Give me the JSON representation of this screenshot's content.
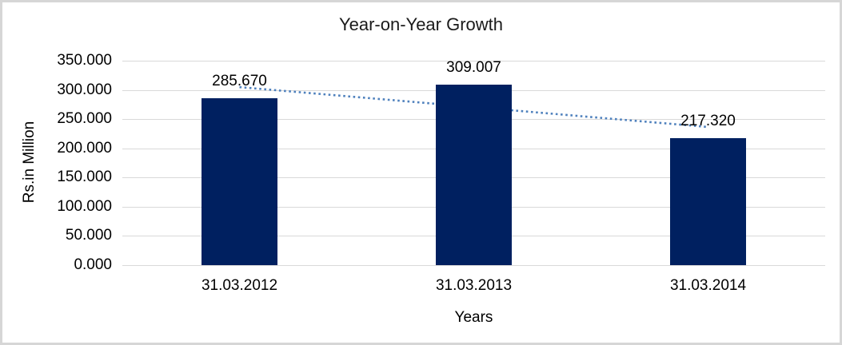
{
  "window": {
    "background_color": "#ffffff",
    "border_color": "#d6d6d6"
  },
  "chart_data": {
    "type": "bar",
    "title": "Year-on-Year Growth",
    "xlabel": "Years",
    "ylabel": "Rs.in Million",
    "categories": [
      "31.03.2012",
      "31.03.2013",
      "31.03.2014"
    ],
    "values": [
      285.67,
      309.007,
      217.32
    ],
    "data_labels": [
      "285.670",
      "309.007",
      "217.320"
    ],
    "ylim": [
      0,
      350
    ],
    "ytick_step": 50,
    "yticks": [
      {
        "value": 350,
        "label": "350.000"
      },
      {
        "value": 300,
        "label": "300.000"
      },
      {
        "value": 250,
        "label": "250.000"
      },
      {
        "value": 200,
        "label": "200.000"
      },
      {
        "value": 150,
        "label": "150.000"
      },
      {
        "value": 100,
        "label": "100.000"
      },
      {
        "value": 50,
        "label": "50.000"
      },
      {
        "value": 0,
        "label": "0.000"
      }
    ],
    "grid": "horizontal",
    "legend": "none",
    "bar_color": "#002060",
    "gridline_color": "#d9d9d9",
    "trendline": {
      "type": "linear",
      "style": "dotted",
      "color": "#4f81bd",
      "start_value": 304.8,
      "end_value": 236.5
    }
  }
}
